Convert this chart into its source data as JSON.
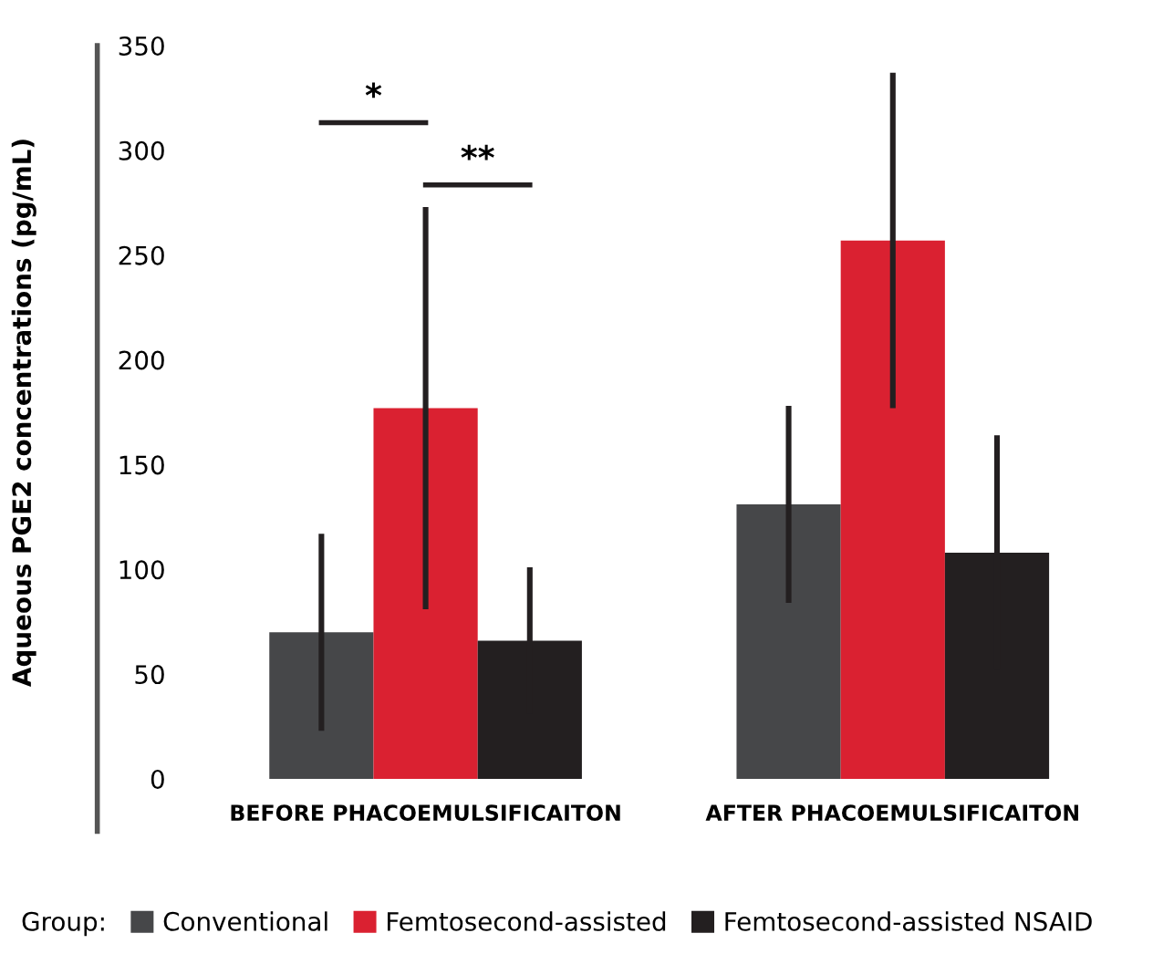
{
  "chart_data": {
    "type": "bar",
    "ylabel": "Aqueous PGE2 concentrations (pg/mL)",
    "legend_title": "Group:",
    "categories": [
      "BEFORE PHACOEMULSIFICAITON",
      "AFTER PHACOEMULSIFICAITON"
    ],
    "series": [
      {
        "name": "Conventional",
        "color": "#464749",
        "values": [
          70,
          131
        ],
        "errors": [
          47,
          47
        ]
      },
      {
        "name": "Femtosecond-assisted",
        "color": "#da2131",
        "values": [
          177,
          257
        ],
        "errors": [
          96,
          80
        ]
      },
      {
        "name": "Femtosecond-assisted NSAID",
        "color": "#231f20",
        "values": [
          66,
          108
        ],
        "errors": [
          35,
          56
        ]
      }
    ],
    "ylim": [
      0,
      350
    ],
    "yticks": [
      0,
      50,
      100,
      150,
      200,
      250,
      300,
      350
    ],
    "annotations": [
      "*",
      "**"
    ],
    "grid": false,
    "legend": "bottom"
  }
}
